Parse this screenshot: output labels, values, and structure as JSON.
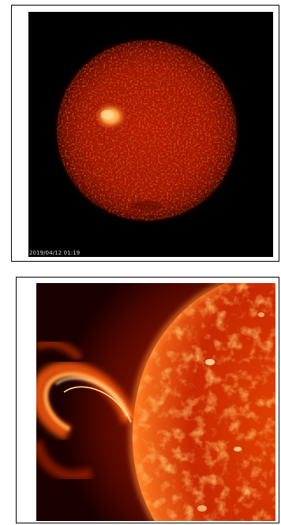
{
  "panels": [
    {
      "subject": "solar-disk",
      "timestamp": "2019/04/12 01:19"
    },
    {
      "subject": "solar-prominence-closeup"
    }
  ],
  "colors": {
    "sky": "#000000",
    "disk_core": "#b81400",
    "disk_edge": "#5a0600",
    "active_region": "#ffb060",
    "surface_bright": "#ff6a10",
    "flare_hot": "#fff2c0"
  }
}
